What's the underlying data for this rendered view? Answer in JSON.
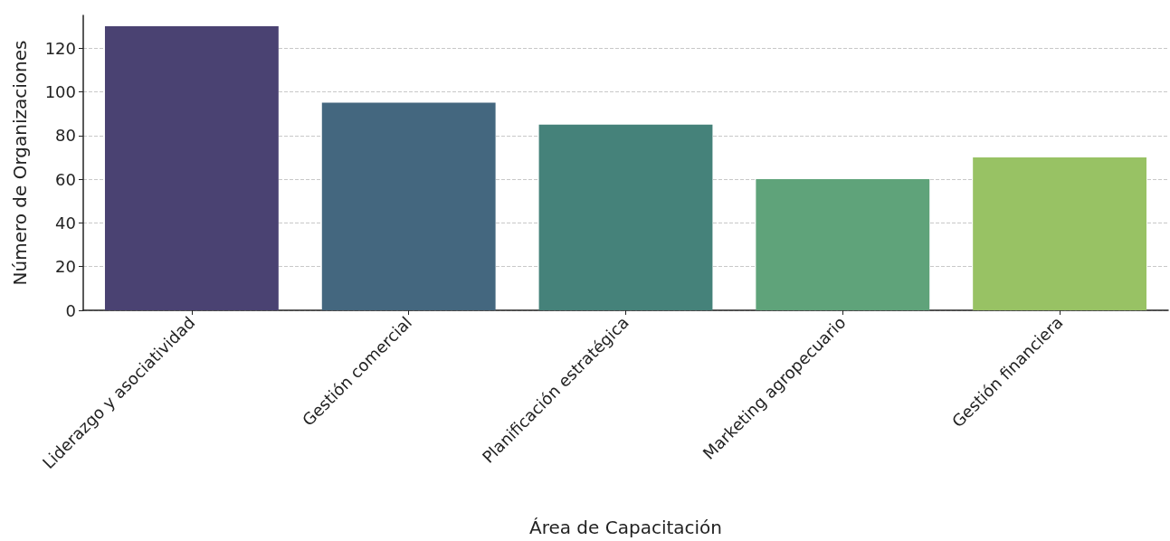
{
  "chart_data": {
    "type": "bar",
    "xlabel": "Área de Capacitación",
    "ylabel": "Número de Organizaciones",
    "categories": [
      "Liderazgo y asociatividad",
      "Gestión comercial",
      "Planificación estratégica",
      "Marketing agropecuario",
      "Gestión financiera"
    ],
    "values": [
      130,
      95,
      85,
      60,
      70
    ],
    "colors": [
      "#4a4272",
      "#44677f",
      "#45827a",
      "#5fa37a",
      "#98c264"
    ],
    "ylim": [
      0,
      135
    ],
    "yticks": [
      0,
      20,
      40,
      60,
      80,
      100,
      120
    ],
    "grid": "y"
  }
}
